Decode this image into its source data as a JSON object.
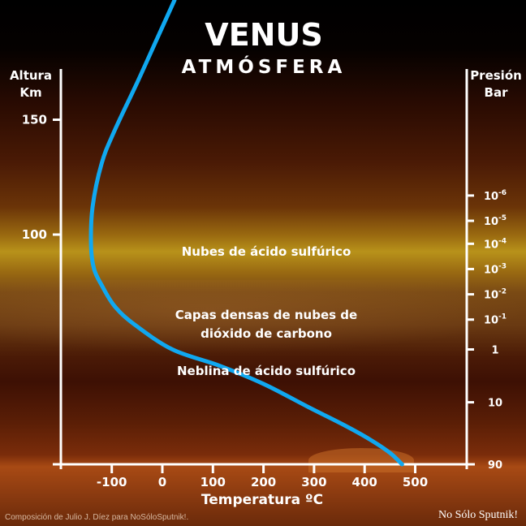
{
  "chart_data": {
    "type": "line",
    "title": "VENUS",
    "subtitle": "ATMÓSFERA",
    "xlabel": "Temperatura ºC",
    "ylabel": [
      "Altura",
      "Km"
    ],
    "y2label": [
      "Presión",
      "Bar"
    ],
    "xlim": [
      -200,
      600
    ],
    "ylim": [
      0,
      202
    ],
    "x_ticks": [
      -100,
      0,
      100,
      200,
      300,
      400,
      500
    ],
    "y_ticks": [
      150,
      100
    ],
    "pressure_ticks": [
      {
        "label": "10",
        "exp": "-6",
        "altitude": 117
      },
      {
        "label": "10",
        "exp": "-5",
        "altitude": 106
      },
      {
        "label": "10",
        "exp": "-4",
        "altitude": 96
      },
      {
        "label": "10",
        "exp": "-3",
        "altitude": 85
      },
      {
        "label": "10",
        "exp": "-2",
        "altitude": 74
      },
      {
        "label": "10",
        "exp": "-1",
        "altitude": 63
      },
      {
        "label": "1",
        "exp": "",
        "altitude": 50
      },
      {
        "label": "10",
        "exp": "",
        "altitude": 27
      },
      {
        "label": "90",
        "exp": "",
        "altitude": 0
      }
    ],
    "series": [
      {
        "color": "#10a8f0",
        "points": [
          [
            24,
            202
          ],
          [
            -11,
            185
          ],
          [
            -48,
            167
          ],
          [
            -95,
            145
          ],
          [
            -120,
            131
          ],
          [
            -138,
            112
          ],
          [
            -141,
            95
          ],
          [
            -135,
            85
          ],
          [
            -120,
            78
          ],
          [
            -95,
            69
          ],
          [
            -56,
            61
          ],
          [
            20,
            50
          ],
          [
            112,
            43
          ],
          [
            200,
            35
          ],
          [
            288,
            25
          ],
          [
            360,
            17
          ],
          [
            409,
            11
          ],
          [
            450,
            5
          ],
          [
            474,
            0
          ]
        ]
      }
    ],
    "annotations": [
      {
        "text": "Nubes de ácido sulfúrico",
        "altitude": 93
      },
      {
        "text": "Capas densas de nubes de",
        "altitude": 65
      },
      {
        "text": "dióxido de carbono",
        "altitude": 57
      },
      {
        "text": "Neblina de ácido sulfúrico",
        "altitude": 41
      }
    ]
  },
  "credit": "Composición de Julio J. Díez para NoSóloSputnik!.",
  "logo": "No Sólo Sputnik!"
}
